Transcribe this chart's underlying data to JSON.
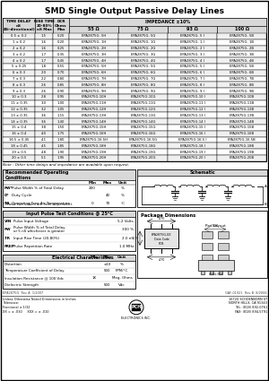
{
  "title": "SMD Single Output Passive Delay Lines",
  "impedance_cols": [
    "55 Ω",
    "75 Ω",
    "93 Ω",
    "100 Ω"
  ],
  "table_rows": [
    [
      "0.5 ± 0.2",
      "1.5",
      "0.20",
      "EPA2875G- 5H",
      "EPA2875G- 5G",
      "EPA2875G- 5 I",
      "EPA2875G- 5B"
    ],
    [
      "1 ± 0.2",
      "1.6",
      "0.20",
      "EPA2875G- 1H",
      "EPA2875G- 1G",
      "EPA2875G- 1 I",
      "EPA2875G- 1B"
    ],
    [
      "2 ± 0.2",
      "1.6",
      "0.25",
      "EPA2875G- 2H",
      "EPA2875G- 2G",
      "EPA2875G- 2 I",
      "EPA2875G- 2B"
    ],
    [
      "3 ± 0.2",
      "1.7",
      "0.35",
      "EPA2875G- 3H",
      "EPA2875G- 3G",
      "EPA2875G- 3 I",
      "EPA2875G- 3B"
    ],
    [
      "4 ± 0.2",
      "1.7",
      "0.45",
      "EPA2875G- 4H",
      "EPA2875G- 4G",
      "EPA2875G- 4 I",
      "EPA2875G- 4B"
    ],
    [
      "5 ± 0.25",
      "1.8",
      "0.55",
      "EPA2875G- 5H",
      "EPA2875G- 5G",
      "EPA2875G- 5 I",
      "EPA2875G- 5B"
    ],
    [
      "6 ± 0.3",
      "2.0",
      "0.70",
      "EPA2875G- 6H",
      "EPA2875G- 6G",
      "EPA2875G- 6 I",
      "EPA2875G- 6B"
    ],
    [
      "7 ± 0.3",
      "2.2",
      "0.80",
      "EPA2875G- 7H",
      "EPA2875G- 7G",
      "EPA2875G- 7 I",
      "EPA2875G- 7B"
    ],
    [
      "8 ± 0.3",
      "2.6",
      "0.85",
      "EPA2875G- 8H",
      "EPA2875G- 8G",
      "EPA2875G- 8 I",
      "EPA2875G- 8B"
    ],
    [
      "9 ± 0.3",
      "2.6",
      "0.90",
      "EPA2875G- 9H",
      "EPA2875G- 9G",
      "EPA2875G- 9 I",
      "EPA2875G- 9B"
    ],
    [
      "10 ± 0.3",
      "2.8",
      "0.95",
      "EPA2875G-10H",
      "EPA2875G-10G",
      "EPA2875G-10 I",
      "EPA2875G-10B"
    ],
    [
      "11 ± 0.35",
      "3.0",
      "1.00",
      "EPA2875G-11H",
      "EPA2875G-11G",
      "EPA2875G-11 I",
      "EPA2875G-11B"
    ],
    [
      "12 ± 0.35",
      "3.2",
      "1.05",
      "EPA2875G-12H",
      "EPA2875G-12G",
      "EPA2875G-12 I",
      "EPA2875G-12B"
    ],
    [
      "13 ± 0.35",
      "3.6",
      "1.15",
      "EPA2875G-13H",
      "EPA2875G-13G",
      "EPA2875G-13 I",
      "EPA2875G-13B"
    ],
    [
      "14 ± 0.35",
      "3.6",
      "1.40",
      "EPA2875G-14H",
      "EPA2875G-14G",
      "EPA2875G-14 I",
      "EPA2875G-14B"
    ],
    [
      "15 ± 0.4",
      "3.8",
      "1.50",
      "EPA2875G-15H",
      "EPA2875G-15G",
      "EPA2875G-15 I",
      "EPA2875G-15B"
    ],
    [
      "16 ± 0.4",
      "4.0",
      "1.75",
      "EPA2875G-16H",
      "EPA2875G-16G",
      "EPA2875G-16 I",
      "EPA2875G-16B"
    ],
    [
      "16.5 ± 0.45",
      "4.1",
      "1.80",
      "EPA2875G-16.5H",
      "EPA2875G-16.5G",
      "EPA2875G-16.5 I",
      "EPA2875G-16.5B"
    ],
    [
      "18 ± 0.45",
      "4.5",
      "1.85",
      "EPA2875G-18H",
      "EPA2875G-18G",
      "EPA2875G-18 I",
      "EPA2875G-18B"
    ],
    [
      "19 ± 0.5",
      "4.8",
      "1.90",
      "EPA2875G-19H",
      "EPA2875G-19G",
      "EPA2875G-19 I",
      "EPA2875G-19B"
    ],
    [
      "20 ± 0.5",
      "5.1",
      "1.95",
      "EPA2875G-20H",
      "EPA2875G-20G",
      "EPA2875G-20 I",
      "EPA2875G-20B"
    ]
  ],
  "note": "Note : Other time delays and impedance are available upon request.",
  "rec_cond_title": "Recommended Operating\nConditions",
  "rec_cond_rows": [
    [
      "PW*",
      "Pulse Width % of Total Delay",
      "200",
      "",
      "%"
    ],
    [
      "D*",
      "Duty Cycle",
      "",
      "40",
      "%"
    ],
    [
      "TA",
      "Operating Free Air Temperature",
      "0",
      "70",
      "°C"
    ]
  ],
  "rec_cond_note": "*These two values are inter-dependent.",
  "schematic_title": "Schematic",
  "input_pulse_title": "Input Pulse Test Conditions @ 25°C",
  "input_pulse_rows": [
    [
      "VIN",
      "Pulse Input Voltage",
      "5.2 Volts"
    ],
    [
      "PW",
      "Pulse Width % of Total Delay\nor 5 nS whichever is greater",
      "300 %"
    ],
    [
      "TR",
      "Input Rise Time (20-80%)",
      "2.0 nS"
    ],
    [
      "FREP",
      "Pulse Repetition Rate",
      "1.0 MHz"
    ]
  ],
  "pkg_dim_title": "Package Dimensions",
  "elec_char_title": "Electrical Characteristics",
  "elec_char_rows": [
    [
      "Distortion",
      "",
      "±10",
      "%"
    ],
    [
      "Temperature Coefficient of Delay",
      "",
      "500",
      "PPM/°C"
    ],
    [
      "Insulation Resistance @ 100 Vdc",
      "1K",
      "",
      "Meg. Ohms"
    ],
    [
      "Dielectric Strength",
      "",
      "500",
      "Vdc"
    ]
  ],
  "footer_left": "Unless Otherwise Noted Dimensions in Inches\nTolerance:\nFractional ± 1/32\nXX = ± .030     XXX = ± .010",
  "footer_company": "16720 SCHOENBORN ST\nNORTH HILLS, CA 91343\nTEL: (818) 892-0761\nFAX: (818) 894-5791",
  "part_ref_left": "EPA2875G  Rev A  1/2007",
  "part_ref_right": "GAF-01921  Rev B  8/2006"
}
